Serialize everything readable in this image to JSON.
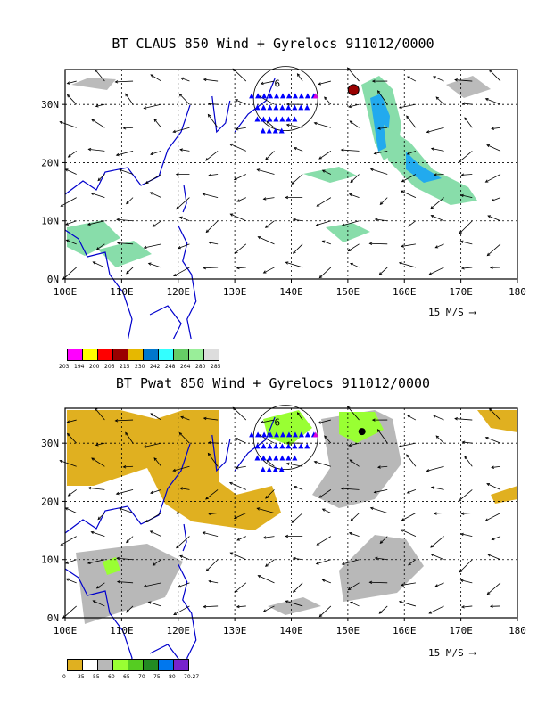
{
  "top_panel": {
    "title": "BT CLAUS 850 Wind + Gyrelocs 911012/0000",
    "legend": {
      "labels": [
        "203",
        "194",
        "200",
        "206",
        "215",
        "230",
        "242",
        "248",
        "264",
        "280",
        "285"
      ],
      "colors": [
        "#ff00ff",
        "#ffff00",
        "#ff0000",
        "#990000",
        "#e6b800",
        "#0077cc",
        "#33ffff",
        "#66cc66",
        "#99ee99",
        "#dddddd"
      ]
    },
    "ref_vector": "15 M/S"
  },
  "bottom_panel": {
    "title": "BT Pwat 850 Wind + Gyrelocs 911012/0000",
    "legend": {
      "labels": [
        "0",
        "35",
        "55",
        "60",
        "65",
        "70",
        "75",
        "80",
        "70.27"
      ],
      "colors": [
        "#e0b020",
        "#ffffff",
        "#b8b8b8",
        "#99ff33",
        "#55cc22",
        "#228b22",
        "#0077ee",
        "#7722cc"
      ]
    },
    "ref_vector": "15 M/S"
  },
  "axes": {
    "x_ticks": [
      "100E",
      "110E",
      "120E",
      "130E",
      "140E",
      "150E",
      "160E",
      "170E",
      "180"
    ],
    "y_ticks": [
      "0N",
      "10N",
      "20N",
      "30N"
    ]
  },
  "colors": {
    "coast": "#0000cc",
    "gyre_marker": "#0000ff",
    "center_marker": "#dd00dd"
  }
}
